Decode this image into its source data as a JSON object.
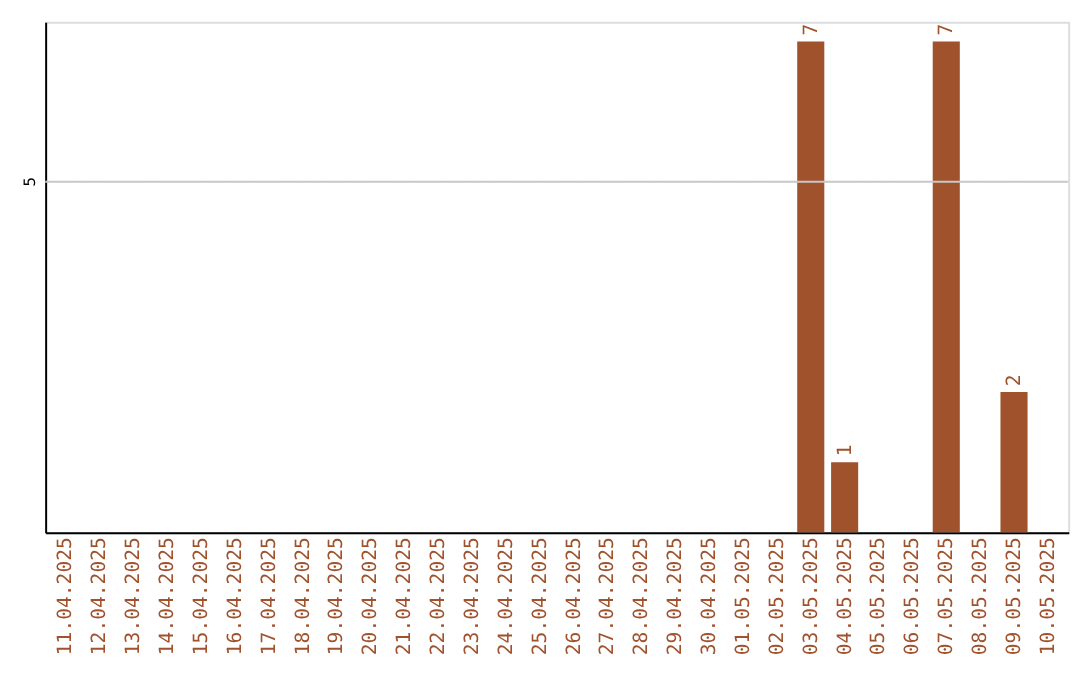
{
  "chart_data": {
    "type": "bar",
    "categories": [
      "11.04.2025",
      "12.04.2025",
      "13.04.2025",
      "14.04.2025",
      "15.04.2025",
      "16.04.2025",
      "17.04.2025",
      "18.04.2025",
      "19.04.2025",
      "20.04.2025",
      "21.04.2025",
      "22.04.2025",
      "23.04.2025",
      "24.04.2025",
      "25.04.2025",
      "26.04.2025",
      "27.04.2025",
      "28.04.2025",
      "29.04.2025",
      "30.04.2025",
      "01.05.2025",
      "02.05.2025",
      "03.05.2025",
      "04.05.2025",
      "05.05.2025",
      "06.05.2025",
      "07.05.2025",
      "08.05.2025",
      "09.05.2025",
      "10.05.2025"
    ],
    "values": [
      null,
      null,
      null,
      null,
      null,
      null,
      null,
      null,
      null,
      null,
      null,
      null,
      null,
      null,
      null,
      null,
      null,
      null,
      null,
      null,
      null,
      null,
      7,
      1,
      null,
      null,
      7,
      null,
      2,
      null
    ],
    "data_labels": true,
    "color": "#a0522d",
    "ref_lines": [
      {
        "axis": "y",
        "value": 5,
        "label": "5",
        "color": "#c8c8c8"
      }
    ]
  }
}
